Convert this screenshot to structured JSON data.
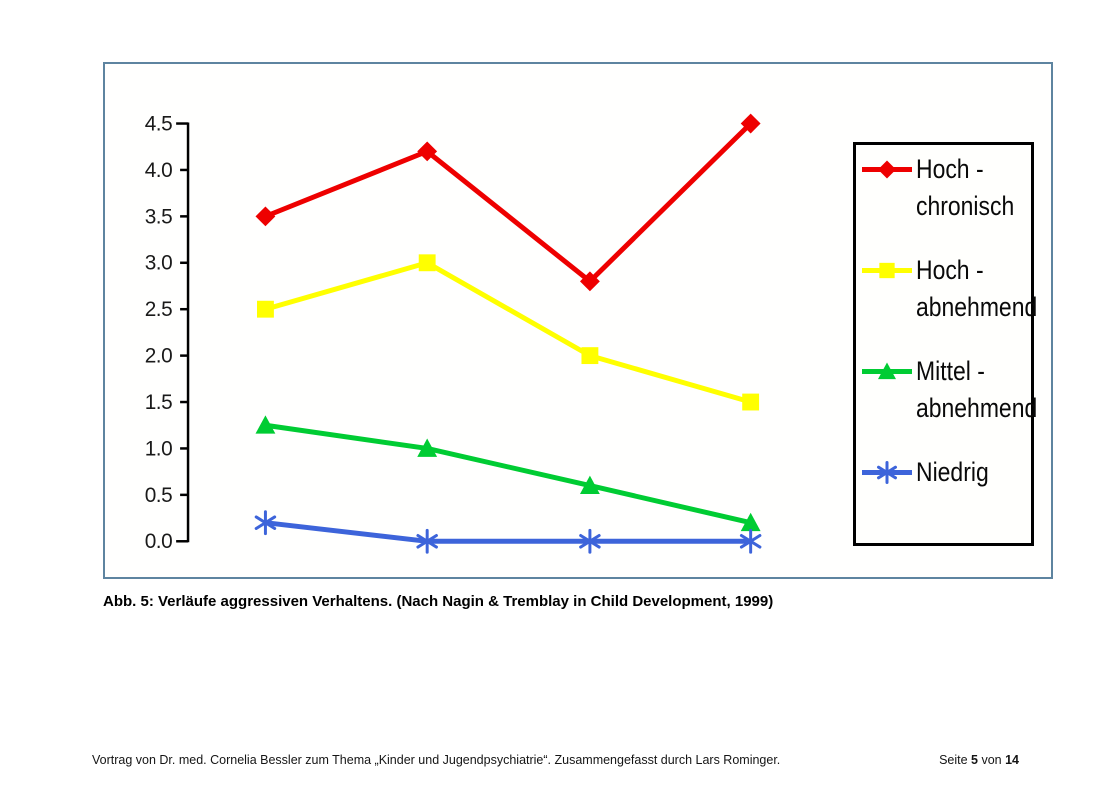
{
  "page": {
    "caption": "Abb. 5: Verläufe aggressiven Verhaltens. (Nach Nagin & Tremblay in Child Development, 1999)",
    "footer": {
      "left": "Vortrag von Dr. med. Cornelia Bessler zum Thema „Kinder und Jugendpsychiatrie“. Zusammengefasst durch Lars Rominger.",
      "right_prefix": "Seite ",
      "page_number": "5",
      "separator": " von ",
      "page_total": "14"
    }
  },
  "chart_data": {
    "type": "line",
    "title": "",
    "xlabel": "",
    "ylabel": "",
    "x_indices": [
      1,
      2,
      3,
      4
    ],
    "x_tick_labels": [],
    "ylim": [
      0,
      4.5
    ],
    "ytick_step": 0.5,
    "ytick_labels": [
      "0.0",
      "0.5",
      "1.0",
      "1.5",
      "2.0",
      "2.5",
      "3.0",
      "3.5",
      "4.0",
      "4.5"
    ],
    "grid": false,
    "legend_position": "right",
    "series": [
      {
        "name": "Hoch - chronisch",
        "label_lines": [
          "Hoch -",
          "chronisch"
        ],
        "color": "#ee0000",
        "marker": "diamond",
        "values": [
          3.5,
          4.2,
          2.8,
          4.5
        ]
      },
      {
        "name": "Hoch - abnehmend",
        "label_lines": [
          "Hoch -",
          "abnehmend"
        ],
        "color": "#ffff00",
        "marker": "square",
        "values": [
          2.5,
          3.0,
          2.0,
          1.5
        ]
      },
      {
        "name": "Mittel - abnehmend",
        "label_lines": [
          "Mittel -",
          "abnehmend"
        ],
        "color": "#00cc33",
        "marker": "triangle",
        "values": [
          1.25,
          1.0,
          0.6,
          0.2
        ]
      },
      {
        "name": "Niedrig",
        "label_lines": [
          "Niedrig"
        ],
        "color": "#3d64da",
        "marker": "asterisk",
        "values": [
          0.2,
          0.0,
          0.0,
          0.0
        ]
      }
    ],
    "colors": {
      "axis": "#000000",
      "tick_label": "#1a1a1a",
      "frame_border": "#5e84a0",
      "legend_border": "#000000"
    }
  }
}
